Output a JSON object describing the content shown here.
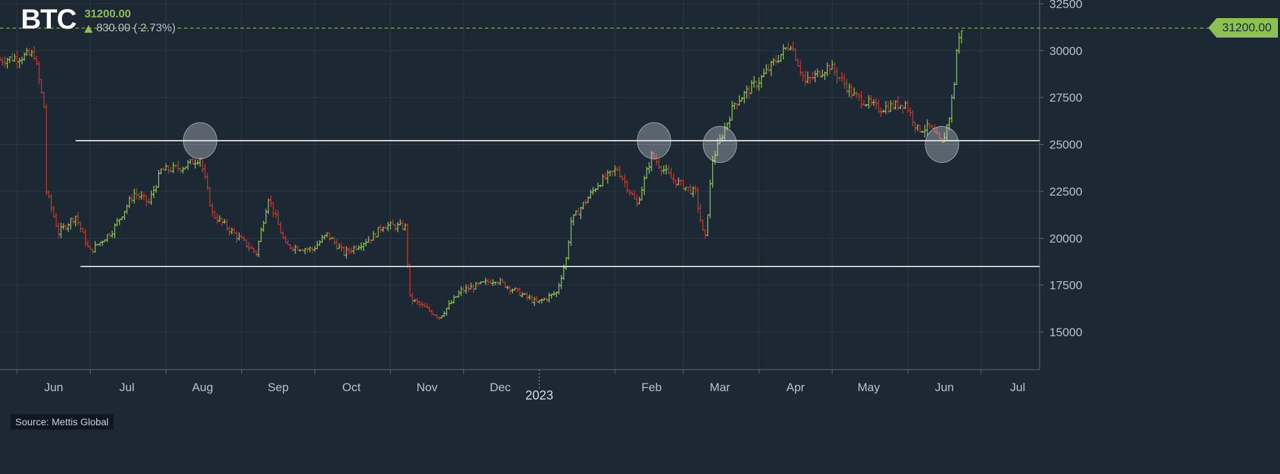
{
  "header": {
    "symbol": "BTC",
    "last_price": "31200.00",
    "change": "830.00 ( 2.73%)",
    "source": "Source: Mettis Global",
    "last_badge": "31200.00"
  },
  "colors": {
    "background": "#1c2834",
    "up": "#8cc152",
    "down": "#c0392b",
    "support": "#ffffff",
    "last_line": "#8cc152"
  },
  "chart_data": {
    "type": "ohlc",
    "title": "",
    "xlabel": "",
    "ylabel": "",
    "ylim": [
      13000,
      32700
    ],
    "xlim": [
      "2022-05-25",
      "2023-07-25"
    ],
    "y_ticks": [
      15000,
      17500,
      20000,
      22500,
      25000,
      27500,
      30000,
      32500
    ],
    "x_ticks": [
      {
        "date": "2022-06-01",
        "label": "Jun"
      },
      {
        "date": "2022-07-01",
        "label": "Jul"
      },
      {
        "date": "2022-08-01",
        "label": "Aug"
      },
      {
        "date": "2022-09-01",
        "label": "Sep"
      },
      {
        "date": "2022-10-01",
        "label": "Oct"
      },
      {
        "date": "2022-11-01",
        "label": "Nov"
      },
      {
        "date": "2022-12-01",
        "label": "Dec"
      },
      {
        "date": "2023-01-01",
        "label": "2023"
      },
      {
        "date": "2023-02-01",
        "label": "Feb"
      },
      {
        "date": "2023-03-01",
        "label": "Mar"
      },
      {
        "date": "2023-04-01",
        "label": "Apr"
      },
      {
        "date": "2023-05-01",
        "label": "May"
      },
      {
        "date": "2023-06-01",
        "label": "Jun"
      },
      {
        "date": "2023-07-01",
        "label": "Jul"
      }
    ],
    "grid": true,
    "last_price": 31200,
    "support_lines": [
      {
        "value": 25200,
        "from": "2022-06-25"
      },
      {
        "value": 18500,
        "from": "2022-06-27"
      }
    ],
    "highlights": [
      {
        "date": "2022-08-15",
        "value": 25200
      },
      {
        "date": "2023-02-17",
        "value": 25200
      },
      {
        "date": "2023-03-16",
        "value": 25000
      },
      {
        "date": "2023-06-15",
        "value": 25000
      }
    ],
    "anchors": [
      [
        "2022-05-25",
        29500
      ],
      [
        "2022-06-08",
        29800
      ],
      [
        "2022-06-12",
        27000
      ],
      [
        "2022-06-13",
        22500
      ],
      [
        "2022-06-18",
        20300
      ],
      [
        "2022-06-25",
        21200
      ],
      [
        "2022-06-30",
        19500
      ],
      [
        "2022-07-01",
        19300
      ],
      [
        "2022-07-10",
        20400
      ],
      [
        "2022-07-19",
        22400
      ],
      [
        "2022-07-25",
        21900
      ],
      [
        "2022-07-30",
        23600
      ],
      [
        "2022-08-08",
        23800
      ],
      [
        "2022-08-15",
        24300
      ],
      [
        "2022-08-20",
        21300
      ],
      [
        "2022-08-31",
        20000
      ],
      [
        "2022-09-07",
        19200
      ],
      [
        "2022-09-12",
        22200
      ],
      [
        "2022-09-19",
        19600
      ],
      [
        "2022-09-30",
        19400
      ],
      [
        "2022-10-06",
        20200
      ],
      [
        "2022-10-13",
        19200
      ],
      [
        "2022-10-25",
        20100
      ],
      [
        "2022-10-29",
        20700
      ],
      [
        "2022-11-07",
        20600
      ],
      [
        "2022-11-09",
        16800
      ],
      [
        "2022-11-21",
        15800
      ],
      [
        "2022-11-30",
        17200
      ],
      [
        "2022-12-14",
        17800
      ],
      [
        "2022-12-31",
        16550
      ],
      [
        "2023-01-08",
        17100
      ],
      [
        "2023-01-12",
        18900
      ],
      [
        "2023-01-14",
        20900
      ],
      [
        "2023-01-25",
        22900
      ],
      [
        "2023-02-02",
        23700
      ],
      [
        "2023-02-10",
        21800
      ],
      [
        "2023-02-16",
        24400
      ],
      [
        "2023-02-24",
        23200
      ],
      [
        "2023-03-06",
        22400
      ],
      [
        "2023-03-09",
        20300
      ],
      [
        "2023-03-10",
        20000
      ],
      [
        "2023-03-13",
        24200
      ],
      [
        "2023-03-22",
        27200
      ],
      [
        "2023-04-01",
        28400
      ],
      [
        "2023-04-10",
        29800
      ],
      [
        "2023-04-14",
        30400
      ],
      [
        "2023-04-20",
        28300
      ],
      [
        "2023-04-30",
        29200
      ],
      [
        "2023-05-10",
        27600
      ],
      [
        "2023-05-20",
        26900
      ],
      [
        "2023-05-31",
        27200
      ],
      [
        "2023-06-05",
        25800
      ],
      [
        "2023-06-10",
        25900
      ],
      [
        "2023-06-15",
        25000
      ],
      [
        "2023-06-18",
        26500
      ],
      [
        "2023-06-20",
        28300
      ],
      [
        "2023-06-21",
        30000
      ],
      [
        "2023-06-23",
        31200
      ]
    ]
  }
}
